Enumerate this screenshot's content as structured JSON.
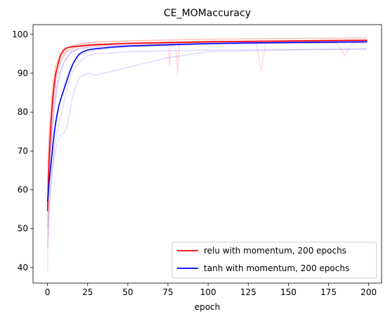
{
  "chart_data": {
    "type": "line",
    "title": "CE_MOMaccuracy",
    "xlabel": "epoch",
    "ylabel": "",
    "xlim": [
      -9,
      208
    ],
    "ylim": [
      36,
      102.5
    ],
    "xticks": [
      0,
      25,
      50,
      75,
      100,
      125,
      150,
      175,
      200
    ],
    "yticks": [
      40,
      50,
      60,
      70,
      80,
      90,
      100
    ],
    "grid": false,
    "legend_position": "lower-right",
    "series": [
      {
        "name": "relu with momentum, 200 epochs",
        "color": "#ff0000",
        "x": [
          0,
          1,
          2,
          3,
          4,
          5,
          6,
          7,
          8,
          10,
          12,
          15,
          20,
          25,
          30,
          40,
          50,
          75,
          100,
          125,
          150,
          175,
          199
        ],
        "values": [
          54.5,
          68,
          76,
          82,
          86.5,
          89.5,
          91.5,
          93,
          94.5,
          96,
          96.5,
          96.8,
          97,
          97.2,
          97.3,
          97.5,
          97.7,
          97.9,
          98.1,
          98.2,
          98.3,
          98.4,
          98.5
        ]
      },
      {
        "name": "tanh with momentum, 200 epochs",
        "color": "#0000ff",
        "x": [
          0,
          1,
          2,
          3,
          4,
          5,
          6,
          7,
          8,
          10,
          12,
          14,
          16,
          18,
          20,
          22,
          25,
          30,
          40,
          50,
          75,
          100,
          125,
          150,
          175,
          199
        ],
        "values": [
          57,
          62,
          66,
          70,
          74,
          77,
          79.5,
          81.5,
          83,
          85.5,
          88,
          90.5,
          92.5,
          94,
          95,
          95.5,
          96,
          96.3,
          96.7,
          97,
          97.3,
          97.6,
          97.8,
          97.9,
          98,
          98.1
        ]
      }
    ],
    "faint_runs": [
      {
        "color": "#ff0000",
        "x": [
          0,
          1,
          3,
          5,
          8,
          12,
          20,
          30,
          50,
          75,
          100,
          150,
          199
        ],
        "values": [
          48,
          67,
          82,
          90,
          94.5,
          96.5,
          97.5,
          98,
          98.3,
          98.6,
          98.8,
          99,
          99.2
        ]
      },
      {
        "color": "#ff0000",
        "x": [
          0,
          1,
          3,
          5,
          8,
          12,
          20,
          30,
          50,
          75,
          100,
          150,
          199
        ],
        "values": [
          39,
          62,
          79,
          88,
          93,
          95.8,
          97,
          97.5,
          97.8,
          98,
          98.2,
          98.4,
          98.5
        ]
      },
      {
        "color": "#ff0000",
        "x": [
          0,
          1,
          3,
          5,
          8,
          12,
          20,
          30,
          50,
          75,
          100,
          150,
          199
        ],
        "values": [
          60,
          73,
          85,
          91.5,
          95,
          96.8,
          97.6,
          98,
          98.3,
          98.5,
          98.7,
          98.9,
          99
        ]
      },
      {
        "color": "#ff0000",
        "x": [
          0,
          1,
          3,
          5,
          8,
          12,
          20,
          30,
          50,
          75,
          76,
          77,
          80,
          81,
          82,
          100,
          150,
          199
        ],
        "values": [
          55,
          70,
          83,
          90,
          94,
          96,
          97,
          97.4,
          97.7,
          97.9,
          92,
          97.8,
          96,
          89.5,
          97.8,
          98.1,
          98.2,
          98.3
        ]
      },
      {
        "color": "#ff0000",
        "x": [
          0,
          1,
          3,
          5,
          8,
          12,
          20,
          30,
          50,
          75,
          100,
          130,
          133,
          136,
          150,
          199
        ],
        "values": [
          66,
          76,
          86,
          92,
          95,
          96.6,
          97.2,
          97.5,
          97.6,
          97.7,
          97.8,
          97.8,
          90.5,
          97.8,
          97.9,
          98
        ]
      },
      {
        "color": "#ff0000",
        "x": [
          0,
          1,
          3,
          5,
          8,
          12,
          20,
          30,
          50,
          75,
          100,
          150,
          180,
          185,
          190,
          199
        ],
        "values": [
          52,
          69,
          80,
          88,
          93,
          95.5,
          96.5,
          97,
          97.3,
          97.5,
          97.7,
          97.8,
          97.8,
          94.5,
          97.8,
          98
        ]
      },
      {
        "color": "#0000ff",
        "x": [
          0,
          2,
          4,
          6,
          8,
          10,
          12,
          15,
          20,
          25,
          30,
          50,
          75,
          100,
          150,
          199
        ],
        "values": [
          45,
          60,
          70,
          75,
          78,
          82,
          86,
          90,
          93,
          94.5,
          95,
          95.5,
          95.8,
          96,
          96.1,
          96.2
        ]
      },
      {
        "color": "#0000ff",
        "x": [
          0,
          2,
          4,
          6,
          8,
          10,
          12,
          14,
          15,
          18,
          20,
          25,
          30,
          50,
          75,
          100,
          150,
          199
        ],
        "values": [
          50,
          62,
          68,
          72,
          74,
          74.5,
          76,
          80,
          83,
          87,
          89,
          90,
          89.5,
          91.5,
          94,
          95.5,
          96,
          96.3
        ]
      },
      {
        "color": "#0000ff",
        "x": [
          0,
          2,
          4,
          6,
          8,
          10,
          12,
          15,
          20,
          25,
          30,
          50,
          75,
          100,
          150,
          199
        ],
        "values": [
          60,
          70,
          80,
          86,
          90,
          92.5,
          94,
          95.5,
          96.5,
          97,
          97.3,
          97.6,
          97.8,
          98,
          98.2,
          98.4
        ]
      },
      {
        "color": "#0000ff",
        "x": [
          0,
          2,
          4,
          6,
          8,
          10,
          12,
          15,
          20,
          25,
          30,
          50,
          75,
          100,
          150,
          199
        ],
        "values": [
          55,
          65,
          73,
          79,
          83,
          86,
          89,
          92,
          94.5,
          95.5,
          96,
          96.8,
          97.2,
          97.5,
          97.7,
          97.8
        ]
      },
      {
        "color": "#0000ff",
        "x": [
          0,
          2,
          4,
          6,
          8,
          10,
          12,
          15,
          20,
          25,
          30,
          50,
          75,
          100,
          150,
          199
        ],
        "values": [
          62,
          72,
          81,
          87,
          90.5,
          92.5,
          94,
          95.5,
          96.2,
          96.6,
          96.8,
          97.2,
          97.5,
          97.8,
          98,
          98.1
        ]
      }
    ]
  }
}
